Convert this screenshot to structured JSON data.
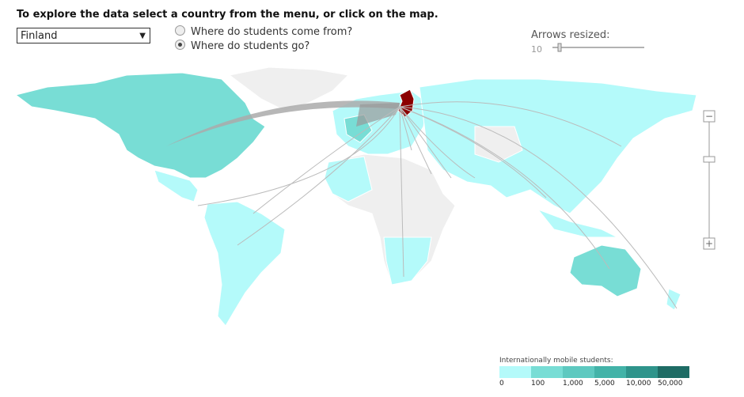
{
  "header": {
    "title": "To explore the data select a country from the menu, or click on the map."
  },
  "country_select": {
    "value": "Finland"
  },
  "options": [
    {
      "label": "Where do students come from?",
      "selected": false
    },
    {
      "label": "Where do students go?",
      "selected": true
    }
  ],
  "arrows": {
    "label": "Arrows resized:",
    "value": "10"
  },
  "zoom": {
    "minus": "−",
    "plus": "+"
  },
  "legend": {
    "title": "Internationally mobile students:",
    "labels": [
      "0",
      "100",
      "1,000",
      "5,000",
      "10,000",
      "50,000"
    ],
    "colors": [
      "#b4fafa",
      "#78ddd5",
      "#5ec9c0",
      "#43b3a8",
      "#2f948b",
      "#1e6c65"
    ]
  }
}
